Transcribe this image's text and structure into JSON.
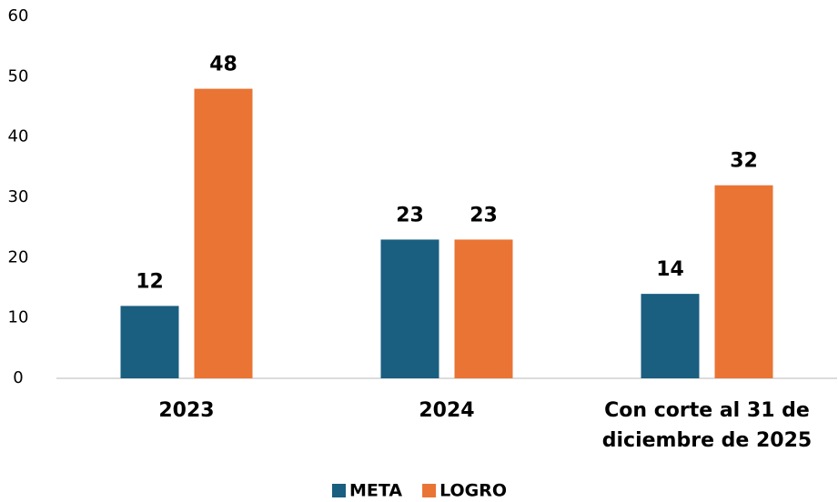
{
  "chart_data": {
    "type": "bar",
    "categories": [
      "2023",
      "2024",
      "Con corte al 31 de diciembre de 2025"
    ],
    "series": [
      {
        "name": "META",
        "color": "#1a5e80",
        "values": [
          12,
          23,
          14
        ]
      },
      {
        "name": "LOGRO",
        "color": "#e97434",
        "values": [
          48,
          23,
          32
        ]
      }
    ],
    "ylim": [
      0,
      60
    ],
    "yticks": [
      0,
      10,
      20,
      30,
      40,
      50,
      60
    ],
    "grid": false,
    "legend": "bottom"
  }
}
